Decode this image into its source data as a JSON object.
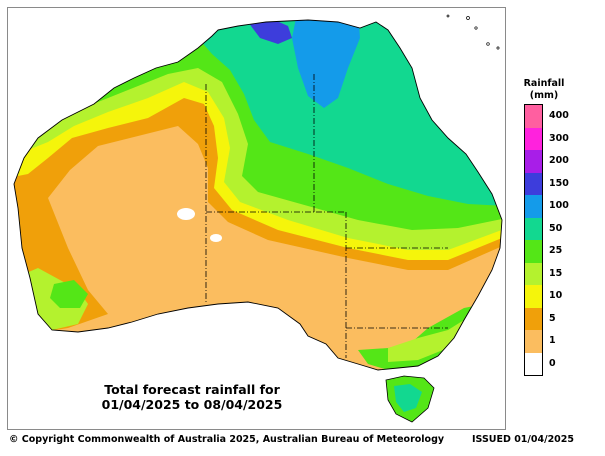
{
  "map": {
    "caption_line1": "Total forecast rainfall for",
    "caption_line2": "01/04/2025 to 08/04/2025"
  },
  "legend": {
    "title_line1": "Rainfall",
    "title_line2": "(mm)",
    "items": [
      {
        "label": "400",
        "color": "#ff5fa0"
      },
      {
        "label": "300",
        "color": "#ff22dd"
      },
      {
        "label": "200",
        "color": "#a81ee8"
      },
      {
        "label": "150",
        "color": "#3d3ddc"
      },
      {
        "label": "100",
        "color": "#149bea"
      },
      {
        "label": "50",
        "color": "#12d890"
      },
      {
        "label": "25",
        "color": "#54e617"
      },
      {
        "label": "15",
        "color": "#b4f22e"
      },
      {
        "label": "10",
        "color": "#f5f50b"
      },
      {
        "label": "5",
        "color": "#f0a00a"
      },
      {
        "label": "1",
        "color": "#fbbd5f"
      },
      {
        "label": "0",
        "color": "#ffffff"
      }
    ]
  },
  "footer": {
    "copyright": "© Copyright Commonwealth of Australia 2025, Australian Bureau of Meteorology",
    "issued": "ISSUED 01/04/2025"
  }
}
